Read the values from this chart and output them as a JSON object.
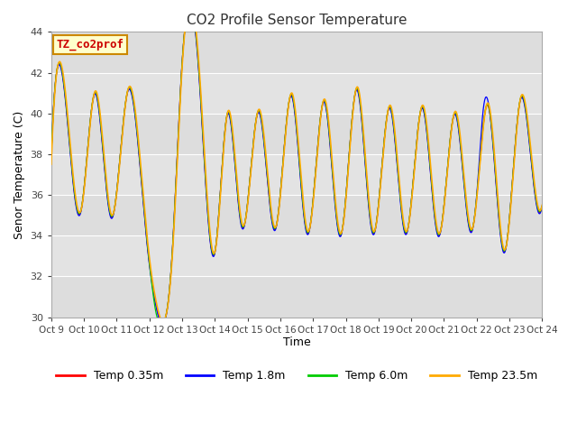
{
  "title": "CO2 Profile Sensor Temperature",
  "xlabel": "Time",
  "ylabel": "Senor Temperature (C)",
  "ylim": [
    30,
    44
  ],
  "xlim": [
    0,
    15
  ],
  "background_color": "#ffffff",
  "plot_bg_color": "#e8e8e8",
  "plot_bg_light": "#d8d8d8",
  "grid_color": "#ffffff",
  "annotation_text": "TZ_co2prof",
  "annotation_bg": "#ffffcc",
  "annotation_border": "#cc8800",
  "annotation_text_color": "#cc0000",
  "legend_labels": [
    "Temp 0.35m",
    "Temp 1.8m",
    "Temp 6.0m",
    "Temp 23.5m"
  ],
  "legend_colors": [
    "#ff0000",
    "#0000ff",
    "#00cc00",
    "#ffaa00"
  ],
  "x_tick_labels": [
    "Oct 9",
    "Oct 10",
    "Oct 11",
    "Oct 12",
    "Oct 13",
    "Oct 14",
    "Oct 15",
    "Oct 16",
    "Oct 17",
    "Oct 18",
    "Oct 19",
    "Oct 20",
    "Oct 21",
    "Oct 22",
    "Oct 23",
    "Oct 24"
  ],
  "x_tick_positions": [
    0,
    1,
    2,
    3,
    4,
    5,
    6,
    7,
    8,
    9,
    10,
    11,
    12,
    13,
    14,
    15
  ]
}
